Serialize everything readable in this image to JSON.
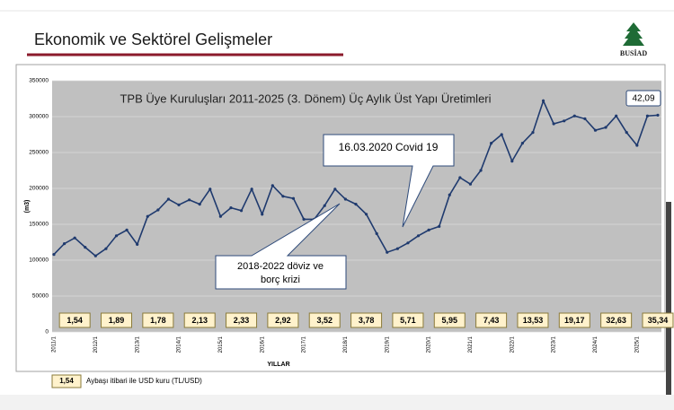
{
  "header": {
    "title": "Ekonomik ve Sektörel Gelişmeler",
    "logo": "BUSİAD"
  },
  "chart_data": {
    "type": "line",
    "title": "TPB Üye Kuruluşları 2011-2025 (3. Dönem) Üç Aylık Üst Yapı Üretimleri",
    "xlabel": "YILLAR",
    "ylabel": "(m3)",
    "categories": [
      "2011/1",
      null,
      null,
      null,
      "2012/1",
      null,
      null,
      null,
      "2013/1",
      null,
      null,
      null,
      "2014/1",
      null,
      null,
      null,
      "2015/1",
      null,
      null,
      null,
      "2016/1",
      null,
      null,
      null,
      "2017/1",
      null,
      null,
      null,
      "2018/1",
      null,
      null,
      null,
      "2019/1",
      null,
      null,
      null,
      "2020/1",
      null,
      null,
      null,
      "2021/1",
      null,
      null,
      null,
      "2022/1",
      null,
      null,
      null,
      "2023/1",
      null,
      null,
      null,
      "2024/1",
      null,
      null,
      null,
      "2025/1",
      null,
      null
    ],
    "values": [
      108000,
      123000,
      131000,
      118000,
      106000,
      116000,
      134000,
      142000,
      122000,
      161000,
      170000,
      185000,
      177000,
      184000,
      178000,
      199000,
      161000,
      173000,
      169000,
      199000,
      164000,
      204000,
      189000,
      186000,
      157000,
      157000,
      176000,
      199000,
      185000,
      178000,
      164000,
      137000,
      111000,
      116000,
      124000,
      134000,
      142000,
      147000,
      191000,
      215000,
      206000,
      225000,
      263000,
      275000,
      238000,
      263000,
      278000,
      322000,
      290000,
      294000,
      301000,
      297000,
      281000,
      285000,
      301000,
      278000,
      260000,
      301000,
      302000
    ],
    "color": "#1f3a6e",
    "ylim": [
      0,
      350000
    ],
    "yticks": [
      0,
      50000,
      100000,
      150000,
      200000,
      250000,
      300000,
      350000
    ],
    "grid": true,
    "annotations": [
      "16.03.2020 Covid 19",
      "2018-2022 döviz ve",
      "borç krizi"
    ],
    "usd_rates": [
      "1,54",
      "1,89",
      "1,78",
      "2,13",
      "2,33",
      "2,92",
      "3,52",
      "3,78",
      "5,71",
      "5,95",
      "7,43",
      "13,53",
      "19,17",
      "32,63",
      "35,34"
    ],
    "latest_rate": "42,09",
    "legend_rate": "1,54",
    "legend_label": "Aybaşı itibari ile USD kuru (TL/USD)"
  }
}
